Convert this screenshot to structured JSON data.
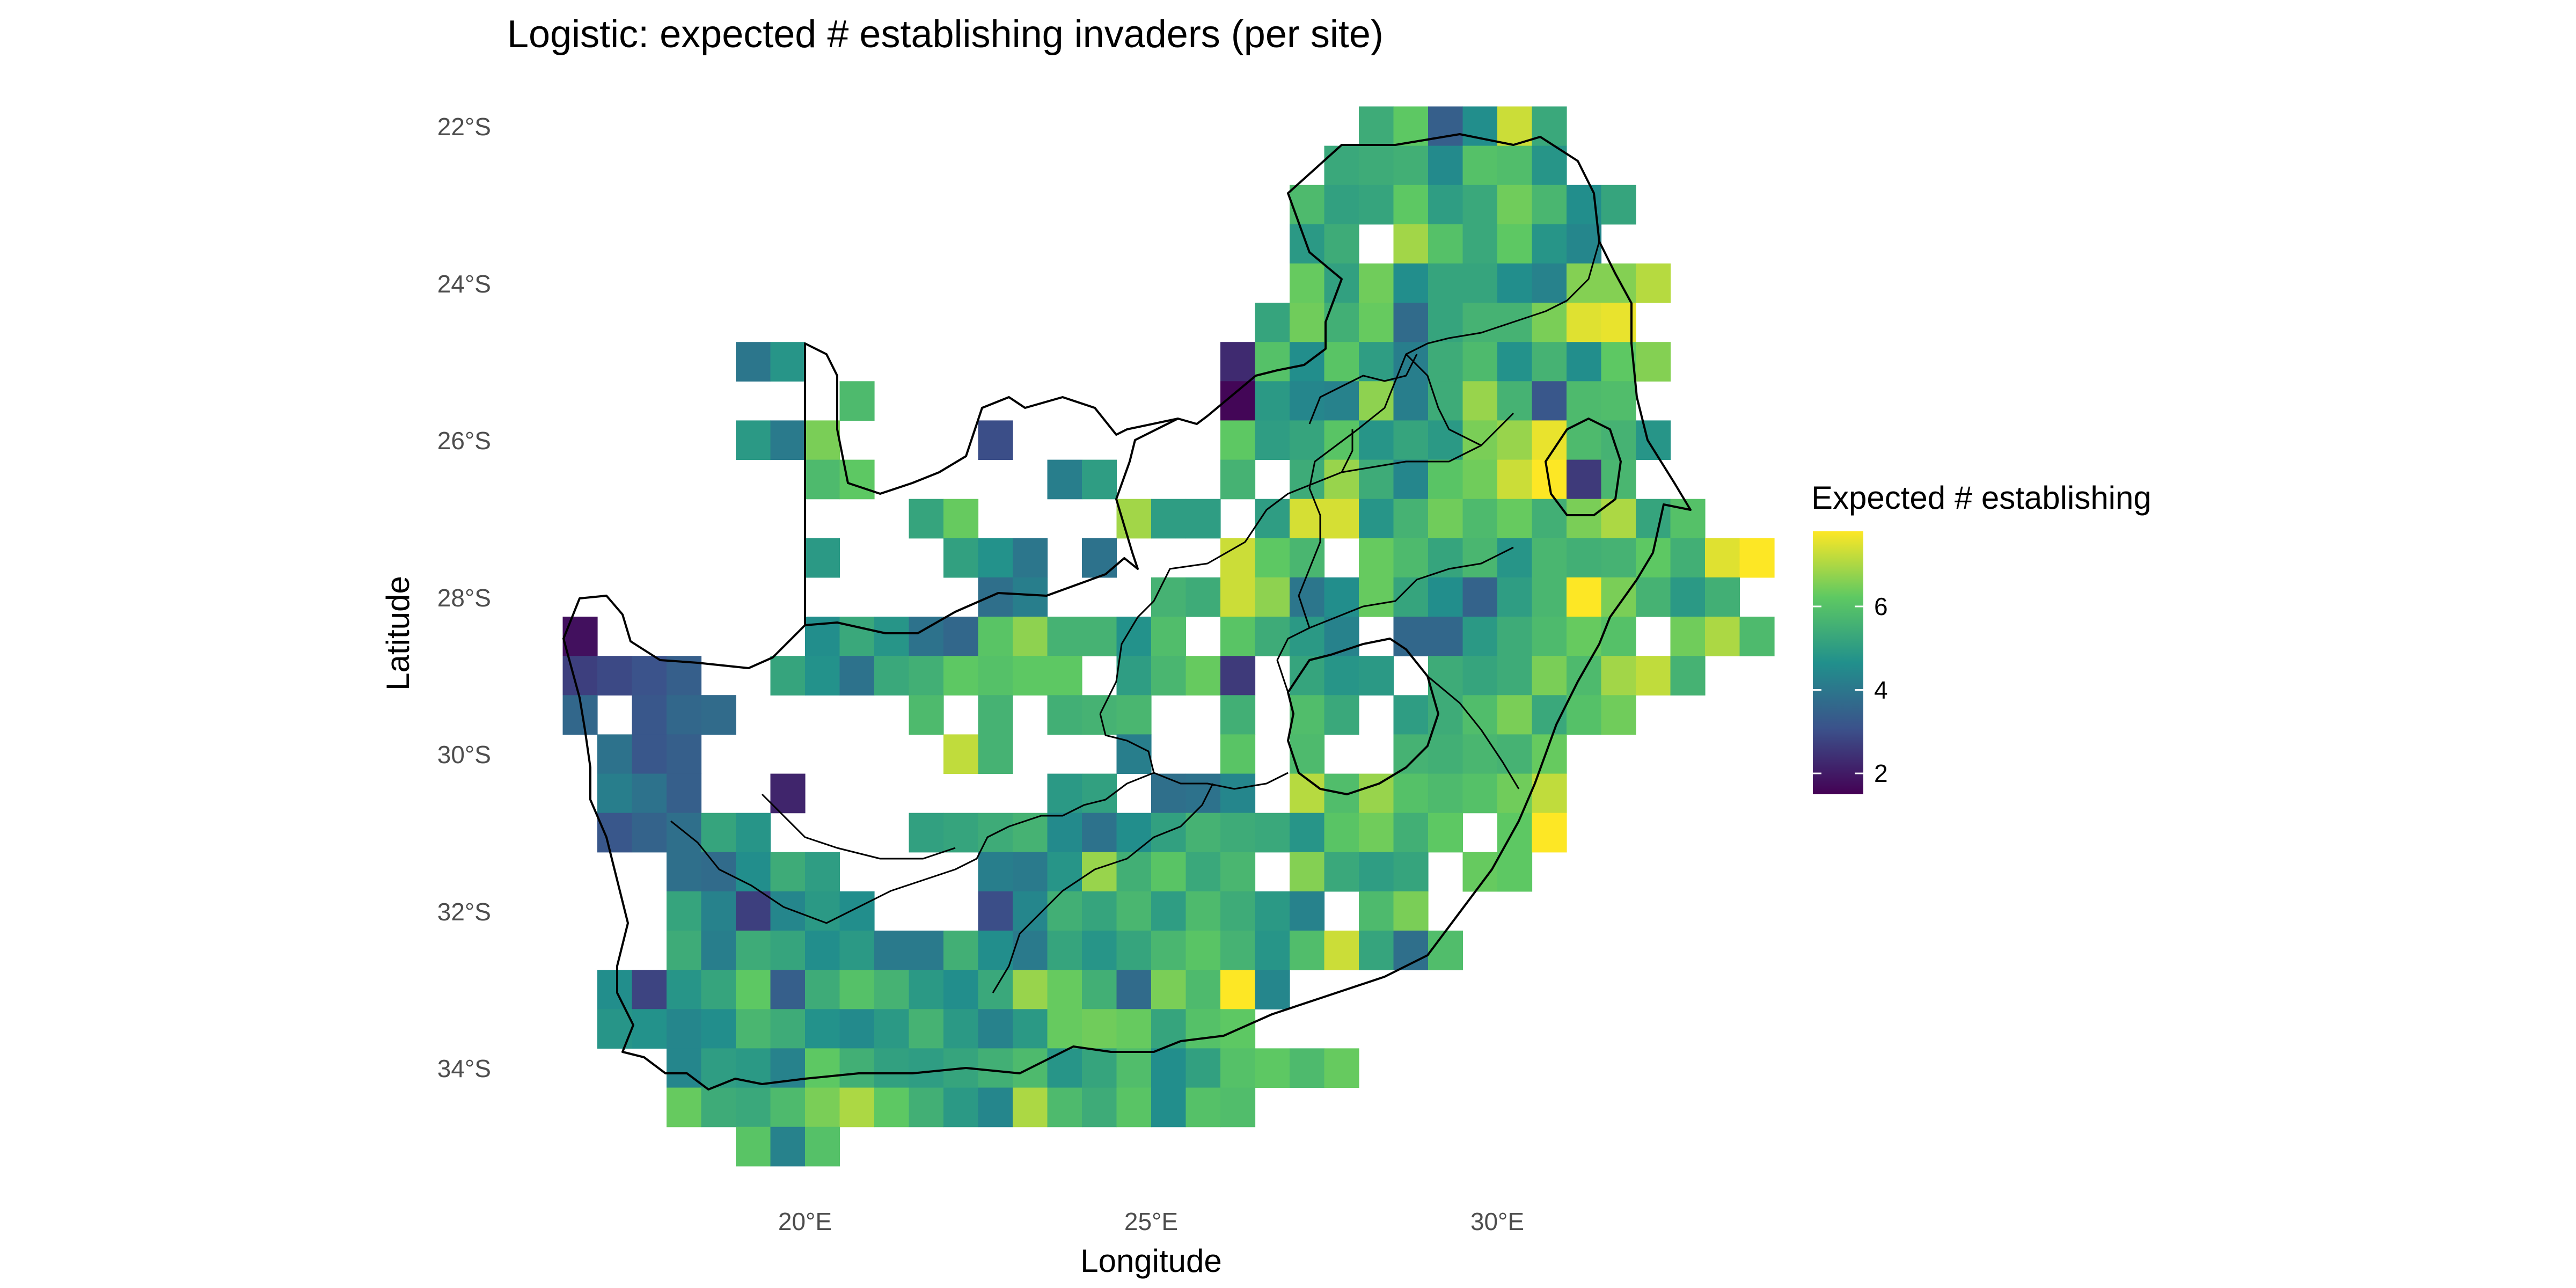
{
  "chart_data": {
    "type": "heatmap",
    "title": "Logistic: expected # establishing invaders (per site)",
    "xlabel": "Longitude",
    "ylabel": "Latitude",
    "x_ticks": [
      "20°E",
      "25°E",
      "30°E"
    ],
    "y_ticks": [
      "22°S",
      "24°S",
      "26°S",
      "28°S",
      "30°S",
      "32°S",
      "34°S"
    ],
    "legend": {
      "title": "Expected # establishing",
      "labels": [
        "2",
        "4",
        "6"
      ],
      "range": [
        1.5,
        7.8
      ],
      "palette": [
        "#440154",
        "#3b528b",
        "#21908c",
        "#5ec962",
        "#fde725"
      ],
      "placement": "right"
    },
    "grid": false,
    "cell_size_deg": 0.5,
    "rows": [
      {
        "lat": -22.0,
        "x0": 28.25,
        "values": [
          5.4,
          6.2,
          3.4,
          4.6,
          7.3,
          5.3
        ]
      },
      {
        "lat": -22.5,
        "x0": 27.75,
        "values": [
          5.3,
          5.4,
          5.5,
          4.5,
          6.0,
          5.9,
          4.8
        ]
      },
      {
        "lat": -23.0,
        "x0": 27.25,
        "values": [
          5.8,
          5.1,
          5.2,
          6.2,
          5.0,
          5.3,
          6.4,
          5.7,
          4.6,
          5.2
        ]
      },
      {
        "lat": -23.5,
        "x0": 27.25,
        "values": [
          4.9,
          5.4,
          null,
          6.9,
          6.0,
          5.3,
          6.2,
          4.8,
          4.4
        ]
      },
      {
        "lat": -24.0,
        "x0": 27.25,
        "values": [
          6.3,
          5.1,
          6.4,
          4.6,
          5.2,
          5.2,
          4.6,
          4.3,
          6.6,
          6.6,
          7.1
        ]
      },
      {
        "lat": -24.5,
        "x0": 26.75,
        "values": [
          5.2,
          6.4,
          5.5,
          6.3,
          3.7,
          5.2,
          5.6,
          5.6,
          6.5,
          7.5,
          7.6
        ]
      },
      {
        "lat": -25.0,
        "x0": 26.25,
        "values": [
          2.3,
          6.0,
          4.6,
          6.1,
          5.0,
          4.2,
          5.4,
          5.8,
          4.7,
          5.6,
          4.6,
          6.2,
          6.6
        ]
      },
      {
        "lat": -25.0,
        "x0": 19.25,
        "values": [
          4.0,
          4.8
        ]
      },
      {
        "lat": -25.5,
        "x0": 26.25,
        "values": [
          1.6,
          4.9,
          4.4,
          4.3,
          6.7,
          4.2,
          5.4,
          6.8,
          5.6,
          3.2,
          5.8,
          5.9
        ]
      },
      {
        "lat": -25.5,
        "x0": 20.75,
        "values": [
          5.8
        ]
      },
      {
        "lat": -26.0,
        "x0": 19.25,
        "values": [
          4.9,
          4.1,
          6.5
        ]
      },
      {
        "lat": -26.0,
        "x0": 22.75,
        "values": [
          3.0
        ]
      },
      {
        "lat": -26.0,
        "x0": 26.25,
        "values": [
          6.2,
          5.0,
          5.2,
          6.1,
          4.8,
          5.2,
          4.9,
          6.5,
          6.8,
          7.6,
          5.8,
          5.6,
          4.8
        ]
      },
      {
        "lat": -26.5,
        "x0": 20.25,
        "values": [
          5.8,
          6.2
        ]
      },
      {
        "lat": -26.5,
        "x0": 23.75,
        "values": [
          4.2,
          5.0
        ]
      },
      {
        "lat": -26.5,
        "x0": 26.25,
        "values": [
          5.6,
          null,
          5.4,
          6.8,
          5.4,
          4.4,
          6.1,
          6.4,
          7.3,
          7.8,
          2.6,
          5.7
        ]
      },
      {
        "lat": -27.0,
        "x0": 21.75,
        "values": [
          5.2,
          6.3
        ]
      },
      {
        "lat": -27.0,
        "x0": 24.75,
        "values": [
          6.9,
          5.0,
          5.0,
          null,
          5.0,
          7.4,
          7.4,
          4.8,
          5.6,
          6.4,
          5.8,
          6.3,
          5.5,
          6.5,
          7.0
        ]
      },
      {
        "lat": -27.0,
        "x0": 32.25,
        "values": [
          5.2,
          6.0
        ]
      },
      {
        "lat": -27.5,
        "x0": 20.25,
        "values": [
          4.9
        ]
      },
      {
        "lat": -27.5,
        "x0": 22.25,
        "values": [
          5.1,
          4.7,
          4.0
        ]
      },
      {
        "lat": -27.5,
        "x0": 24.25,
        "values": [
          3.9
        ]
      },
      {
        "lat": -27.5,
        "x0": 26.25,
        "values": [
          7.3,
          6.2,
          5.7,
          null,
          6.3,
          5.8,
          5.2,
          5.7,
          4.8,
          5.7,
          5.5,
          5.6,
          6.2,
          5.5,
          7.5,
          7.9
        ]
      },
      {
        "lat": -28.0,
        "x0": 22.75,
        "values": [
          3.8,
          4.2
        ]
      },
      {
        "lat": -28.0,
        "x0": 25.25,
        "values": [
          5.6,
          5.4,
          7.3,
          6.7,
          4.0,
          4.6,
          6.3,
          5.2,
          4.6,
          3.5,
          5.0,
          5.7,
          7.8,
          6.5,
          5.6,
          4.9,
          5.5
        ]
      },
      {
        "lat": -28.5,
        "x0": 16.75,
        "values": [
          1.8
        ]
      },
      {
        "lat": -28.5,
        "x0": 20.25,
        "values": [
          4.6,
          5.3,
          4.8,
          3.9,
          3.6,
          6.1,
          6.7,
          5.6,
          5.6,
          4.7,
          5.9
        ]
      },
      {
        "lat": -28.5,
        "x0": 26.25,
        "values": [
          6.1,
          5.4,
          4.9,
          4.3,
          null,
          3.6,
          3.6,
          4.9,
          5.4,
          5.8,
          6.3,
          6.0,
          null,
          6.4,
          7.0,
          5.8
        ]
      },
      {
        "lat": -29.0,
        "x0": 16.75,
        "values": [
          2.7,
          2.9,
          3.1,
          3.4
        ]
      },
      {
        "lat": -29.0,
        "x0": 19.75,
        "values": [
          5.2,
          4.7,
          3.9,
          5.3,
          5.5,
          6.2,
          6.0,
          6.2,
          6.2,
          null,
          5.0,
          5.7,
          6.3
        ]
      },
      {
        "lat": -29.0,
        "x0": 26.25,
        "values": [
          2.6
        ]
      },
      {
        "lat": -29.0,
        "x0": 27.25,
        "values": [
          5.2,
          4.8,
          4.9,
          null,
          5.4,
          5.2,
          5.4,
          6.5,
          5.8,
          6.9,
          7.2,
          5.6
        ]
      },
      {
        "lat": -29.5,
        "x0": 16.75,
        "values": [
          3.6,
          null,
          3.2,
          3.6,
          3.0
        ]
      },
      {
        "lat": -29.5,
        "x0": 18.75,
        "values": [
          3.7
        ]
      },
      {
        "lat": -29.5,
        "x0": 21.75,
        "values": [
          5.8
        ]
      },
      {
        "lat": -29.5,
        "x0": 22.75,
        "values": [
          5.6
        ]
      },
      {
        "lat": -29.5,
        "x0": 23.75,
        "values": [
          5.5,
          5.6,
          5.7
        ]
      },
      {
        "lat": -29.5,
        "x0": 26.25,
        "values": [
          5.5
        ]
      },
      {
        "lat": -29.5,
        "x0": 27.25,
        "values": [
          5.9,
          5.3
        ]
      },
      {
        "lat": -29.5,
        "x0": 28.75,
        "values": [
          5.0,
          5.4,
          5.9,
          6.5,
          5.3,
          6.0,
          6.4
        ]
      },
      {
        "lat": -30.0,
        "x0": 17.25,
        "values": [
          3.9,
          3.2,
          3.4
        ]
      },
      {
        "lat": -30.0,
        "x0": 22.25,
        "values": [
          7.2,
          5.6
        ]
      },
      {
        "lat": -30.0,
        "x0": 24.75,
        "values": [
          4.2
        ]
      },
      {
        "lat": -30.0,
        "x0": 26.25,
        "values": [
          6.1
        ]
      },
      {
        "lat": -30.0,
        "x0": 27.25,
        "values": [
          5.8
        ]
      },
      {
        "lat": -30.0,
        "x0": 28.75,
        "values": [
          5.6,
          5.5,
          5.7,
          5.6,
          6.3
        ]
      },
      {
        "lat": -30.5,
        "x0": 17.25,
        "values": [
          4.2,
          3.9,
          3.4
        ]
      },
      {
        "lat": -30.5,
        "x0": 19.75,
        "values": [
          2.2
        ]
      },
      {
        "lat": -30.5,
        "x0": 23.75,
        "values": [
          4.9,
          5.1
        ]
      },
      {
        "lat": -30.5,
        "x0": 25.25,
        "values": [
          3.8,
          3.9,
          4.4
        ]
      },
      {
        "lat": -30.5,
        "x0": 27.25,
        "values": [
          7.1,
          5.9,
          6.8
        ]
      },
      {
        "lat": -30.5,
        "x0": 28.75,
        "values": [
          6.0,
          5.8,
          6.0,
          6.4,
          7.2
        ]
      },
      {
        "lat": -31.0,
        "x0": 17.25,
        "values": [
          3.2,
          3.5,
          3.8,
          5.2,
          4.8
        ]
      },
      {
        "lat": -31.0,
        "x0": 21.75,
        "values": [
          5.1,
          5.2,
          5.4,
          5.6,
          4.5,
          3.9,
          4.6,
          5.1,
          5.6,
          5.4,
          5.3,
          4.8,
          6.1,
          6.4,
          5.5,
          6.2
        ]
      },
      {
        "lat": -31.0,
        "x0": 30.25,
        "values": [
          6.2,
          7.8
        ]
      },
      {
        "lat": -31.5,
        "x0": 18.25,
        "values": [
          3.8,
          3.7,
          4.6,
          5.4,
          5.0
        ]
      },
      {
        "lat": -31.5,
        "x0": 22.75,
        "values": [
          4.2,
          4.1,
          4.8,
          6.8,
          5.5
        ]
      },
      {
        "lat": -31.5,
        "x0": 25.25,
        "values": [
          6.1,
          5.3,
          5.7
        ]
      },
      {
        "lat": -31.5,
        "x0": 27.25,
        "values": [
          6.6,
          5.3,
          5.0,
          5.2
        ]
      },
      {
        "lat": -31.5,
        "x0": 29.75,
        "values": [
          6.3,
          6.2
        ]
      },
      {
        "lat": -32.0,
        "x0": 18.25,
        "values": [
          5.2,
          4.3,
          2.7,
          4.4,
          4.9,
          4.6
        ]
      },
      {
        "lat": -32.0,
        "x0": 22.75,
        "values": [
          3.0,
          4.4,
          5.5,
          5.2,
          5.7,
          5.0,
          5.8,
          5.4,
          4.9,
          4.3
        ]
      },
      {
        "lat": -32.0,
        "x0": 28.25,
        "values": [
          5.8,
          6.5
        ]
      },
      {
        "lat": -32.5,
        "x0": 18.25,
        "values": [
          5.4,
          4.2,
          5.4,
          5.2,
          4.6,
          4.9,
          4.1,
          4.1,
          5.5,
          4.6,
          4.1,
          5.2,
          4.8,
          5.2,
          5.7,
          6.1,
          5.6,
          4.8,
          5.9,
          7.3,
          5.2,
          3.8
        ]
      },
      {
        "lat": -32.5,
        "x0": 29.25,
        "values": [
          5.9
        ]
      },
      {
        "lat": -33.0,
        "x0": 17.25,
        "values": [
          4.6,
          2.8,
          4.8,
          5.2,
          6.2,
          3.4,
          5.4,
          6.0,
          5.6,
          4.9,
          4.6,
          5.3,
          6.8,
          6.3,
          5.5,
          3.7,
          6.5,
          5.8,
          7.8,
          4.4
        ]
      },
      {
        "lat": -33.5,
        "x0": 17.25,
        "values": [
          4.8,
          4.7,
          4.4,
          4.6,
          5.7,
          5.4,
          4.7,
          4.5,
          4.9,
          5.6,
          4.9,
          4.3,
          4.9,
          6.3,
          6.4,
          6.3,
          5.2,
          6.0,
          6.2
        ]
      },
      {
        "lat": -34.0,
        "x0": 18.25,
        "values": [
          4.4,
          5.0,
          4.9,
          4.3,
          6.2,
          5.5,
          5.1,
          5.0,
          5.2,
          5.5,
          5.8,
          4.8,
          5.2,
          5.9,
          4.6,
          5.1,
          6.0,
          6.2,
          5.8,
          6.3
        ]
      },
      {
        "lat": -34.5,
        "x0": 18.25,
        "values": [
          6.3,
          5.4,
          5.3,
          5.8,
          6.5,
          7.0,
          6.2,
          5.5,
          4.9,
          4.4,
          7.0,
          5.8,
          5.4,
          6.1,
          4.6,
          6.0,
          5.9
        ]
      },
      {
        "lat": -35.0,
        "x0": 19.25,
        "values": [
          6.1,
          4.3,
          6.0
        ]
      }
    ]
  }
}
